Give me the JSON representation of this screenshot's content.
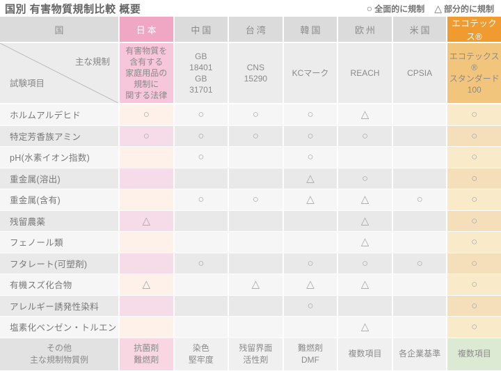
{
  "title": "国別 有害物質規制比較 概要",
  "legend": [
    {
      "symbol": "○",
      "label": "全面的に規制"
    },
    {
      "symbol": "△",
      "label": "部分的に規制"
    }
  ],
  "colors": {
    "japan_accent": "#f0a7c3",
    "ecotex_accent": "#ef9b30",
    "footer_highlight": "#dcead3"
  },
  "chart_data": {
    "type": "table",
    "title": "国別 有害物質規制比較 概要",
    "mark_meaning": {
      "circle": "全面的に規制",
      "triangle": "部分的に規制"
    },
    "corner": {
      "country_header": "国",
      "regulation_header": "主な規制",
      "test_item_header": "試験項目"
    },
    "columns": [
      "日本",
      "中国",
      "台湾",
      "韓国",
      "欧州",
      "米国",
      "エコテックス®"
    ],
    "regulations": [
      "有害物質を\n含有する\n家庭用品の\n規制に\n関する法律",
      "GB\n18401\nGB\n31701",
      "CNS\n15290",
      "KCマーク",
      "REACH",
      "CPSIA",
      "エコテックス®\nスタンダード\n100"
    ],
    "rows": [
      {
        "label": "ホルムアルデヒド",
        "marks": [
          "○",
          "○",
          "○",
          "○",
          "△",
          "",
          "○"
        ]
      },
      {
        "label": "特定芳香族アミン",
        "marks": [
          "○",
          "○",
          "○",
          "○",
          "○",
          "",
          "○"
        ]
      },
      {
        "label": "pH(水素イオン指数)",
        "marks": [
          "",
          "○",
          "",
          "○",
          "",
          "",
          "○"
        ]
      },
      {
        "label": "重金属(溶出)",
        "marks": [
          "",
          "",
          "",
          "△",
          "○",
          "",
          "○"
        ]
      },
      {
        "label": "重金属(含有)",
        "marks": [
          "",
          "○",
          "○",
          "△",
          "△",
          "○",
          "○"
        ]
      },
      {
        "label": "残留農薬",
        "marks": [
          "△",
          "",
          "",
          "",
          "△",
          "",
          "○"
        ]
      },
      {
        "label": "フェノール類",
        "marks": [
          "",
          "",
          "",
          "",
          "△",
          "",
          "○"
        ]
      },
      {
        "label": "フタレート(可塑剤)",
        "marks": [
          "",
          "○",
          "",
          "○",
          "○",
          "○",
          "○"
        ]
      },
      {
        "label": "有機スズ化合物",
        "marks": [
          "△",
          "",
          "△",
          "△",
          "△",
          "",
          "○"
        ]
      },
      {
        "label": "アレルギー誘発性染料",
        "marks": [
          "",
          "",
          "",
          "○",
          "",
          "",
          "○"
        ]
      },
      {
        "label": "塩素化ベンゼン・トルエン",
        "marks": [
          "",
          "",
          "",
          "",
          "△",
          "",
          "○"
        ]
      }
    ],
    "footer": {
      "label": "その他\n主な規制物質例",
      "values": [
        "抗菌剤\n難燃剤",
        "染色\n堅牢度",
        "残留界面\n活性剤",
        "難燃剤\nDMF",
        "複数項目",
        "各企業基準",
        "複数項目"
      ]
    }
  }
}
